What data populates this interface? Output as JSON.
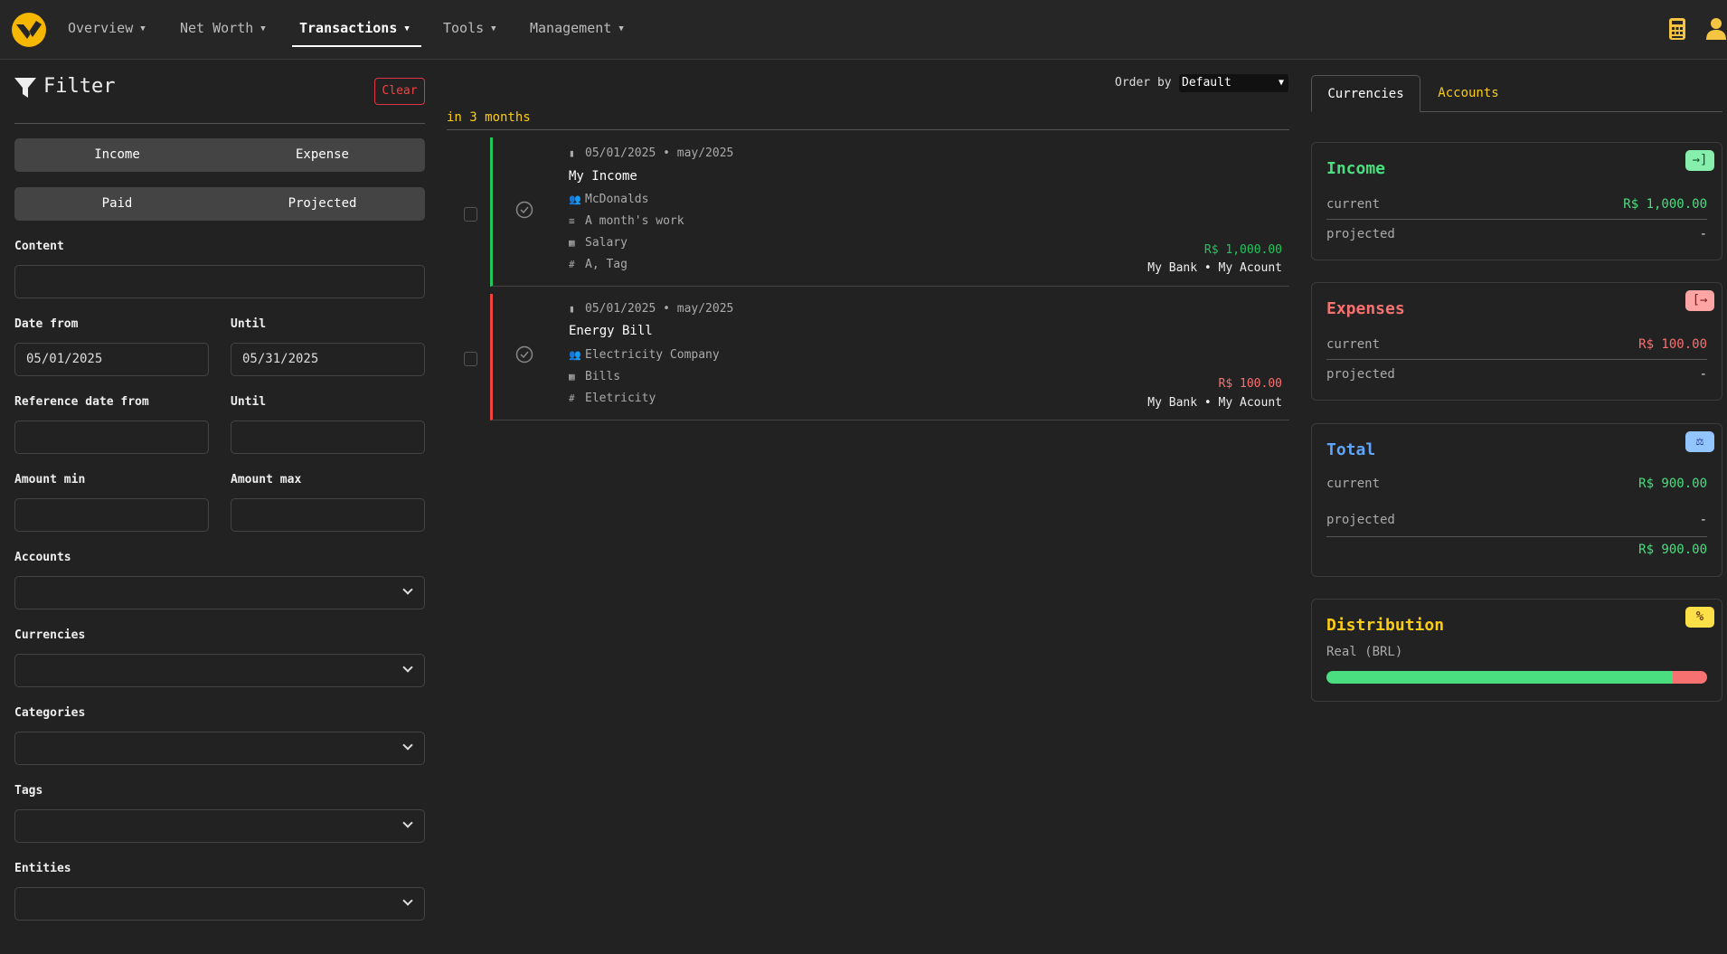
{
  "nav": {
    "items": [
      {
        "label": "Overview"
      },
      {
        "label": "Net Worth"
      },
      {
        "label": "Transactions"
      },
      {
        "label": "Tools"
      },
      {
        "label": "Management"
      }
    ],
    "active": "Transactions",
    "logo_color": "#f5b700"
  },
  "filter": {
    "title": "Filter",
    "clear": "Clear",
    "type_toggle": [
      "Income",
      "Expense"
    ],
    "status_toggle": [
      "Paid",
      "Projected"
    ],
    "content_label": "Content",
    "content_value": "",
    "date_from_label": "Date from",
    "date_from": "05/01/2025",
    "date_until_label": "Until",
    "date_until": "05/31/2025",
    "ref_from_label": "Reference date from",
    "ref_until_label": "Until",
    "amount_min_label": "Amount min",
    "amount_max_label": "Amount max",
    "accounts_label": "Accounts",
    "currencies_label": "Currencies",
    "categories_label": "Categories",
    "tags_label": "Tags",
    "entities_label": "Entities"
  },
  "list": {
    "order_label": "Order by",
    "order_value": "Default",
    "group": "in 3 months",
    "transactions": [
      {
        "date": "05/01/2025 • may/2025",
        "title": "My Income",
        "entity": "McDonalds",
        "description": "A month's work",
        "category": "Salary",
        "tags": "A, Tag",
        "amount": "R$ 1,000.00",
        "account": "My Bank • My Acount",
        "type": "income",
        "color": "#22c55e"
      },
      {
        "date": "05/01/2025 • may/2025",
        "title": "Energy Bill",
        "entity": "Electricity Company",
        "category": "Bills",
        "tags": "Eletricity",
        "amount": "R$ 100.00",
        "account": "My Bank • My Acount",
        "type": "expense",
        "color": "#ef4444"
      }
    ]
  },
  "summary": {
    "tabs": [
      "Currencies",
      "Accounts"
    ],
    "active_tab": "Currencies",
    "income": {
      "title": "Income",
      "current_label": "current",
      "current": "R$ 1,000.00",
      "projected_label": "projected",
      "projected": "-"
    },
    "expenses": {
      "title": "Expenses",
      "current_label": "current",
      "current": "R$ 100.00",
      "projected_label": "projected",
      "projected": "-"
    },
    "total": {
      "title": "Total",
      "current_label": "current",
      "current": "R$ 900.00",
      "projected_label": "projected",
      "projected": "-",
      "sum": "R$ 900.00"
    },
    "distribution": {
      "title": "Distribution",
      "label": "Real (BRL)",
      "income_fraction": 0.909,
      "expense_fraction": 0.091
    }
  },
  "colors": {
    "green": "#4ade80",
    "red": "#f87171",
    "blue": "#60a5fa",
    "yellow": "#facc15",
    "accent": "#f5c542"
  }
}
